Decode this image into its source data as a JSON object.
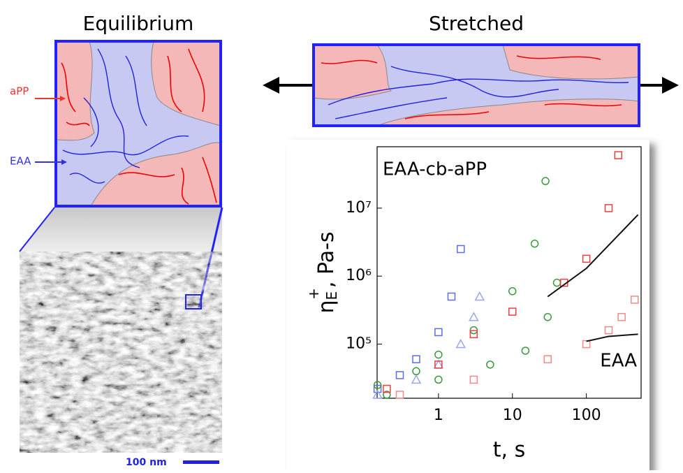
{
  "diagram": {
    "equilibrium_title": "Equilibrium",
    "stretched_title": "Stretched",
    "label_app": "aPP",
    "label_eaa": "EAA",
    "scale_bar": "100 nm"
  },
  "chart_data": {
    "type": "scatter",
    "log_x": true,
    "log_y": true,
    "xlabel": "t, s",
    "ylabel": {
      "symbol": "η",
      "sub": "E",
      "sup": "+",
      "unit": ", Pa-s"
    },
    "annotations": [
      "EAA-cb-aPP",
      "EAA"
    ],
    "xlim": [
      0.148,
      550
    ],
    "ylim": [
      16000,
      80000000
    ],
    "xticks": [
      1,
      10,
      100
    ],
    "yticks": [
      {
        "value": 100000,
        "label": "10⁵"
      },
      {
        "value": 1000000,
        "label": "10⁶"
      },
      {
        "value": 10000000,
        "label": "10⁷"
      }
    ],
    "series": [
      {
        "color": "#5b6ee8",
        "marker": "square",
        "x": [
          0.15,
          0.3,
          0.5,
          1,
          1.5,
          2
        ],
        "values": [
          22000,
          35000,
          60000,
          150000,
          500000,
          2500000
        ]
      },
      {
        "color": "#9aa6ef",
        "marker": "triangle",
        "x": [
          0.15,
          0.5,
          1,
          2,
          3,
          3.6
        ],
        "values": [
          18000,
          30000,
          50000,
          100000,
          250000,
          500000
        ]
      },
      {
        "color": "#3a9a3a",
        "marker": "circle",
        "x": [
          0.15,
          0.5,
          1,
          3,
          10,
          20,
          28
        ],
        "values": [
          25000,
          40000,
          70000,
          160000,
          600000,
          3000000,
          25000000
        ]
      },
      {
        "color": "#3a9a3a",
        "marker": "circle",
        "x": [
          0.2,
          1,
          5,
          15,
          30,
          40
        ],
        "values": [
          18000,
          30000,
          50000,
          80000,
          250000,
          800000
        ]
      },
      {
        "color": "#e84040",
        "marker": "square",
        "x": [
          0.2,
          1,
          3,
          10,
          50,
          100,
          200,
          270
        ],
        "values": [
          22000,
          50000,
          140000,
          300000,
          800000,
          1800000,
          10000000,
          60000000
        ]
      },
      {
        "color": "#f08a8a",
        "marker": "square",
        "x": [
          0.3,
          3,
          30,
          100,
          200,
          300,
          450
        ],
        "values": [
          18000,
          30000,
          60000,
          100000,
          160000,
          250000,
          450000
        ]
      },
      {
        "color": "#111111",
        "marker": "line",
        "x": [
          30,
          100,
          500
        ],
        "values": [
          500000,
          1300000,
          8000000
        ]
      },
      {
        "color": "#111111",
        "marker": "line",
        "x": [
          100,
          200,
          500
        ],
        "values": [
          110000,
          130000,
          140000
        ]
      }
    ]
  }
}
